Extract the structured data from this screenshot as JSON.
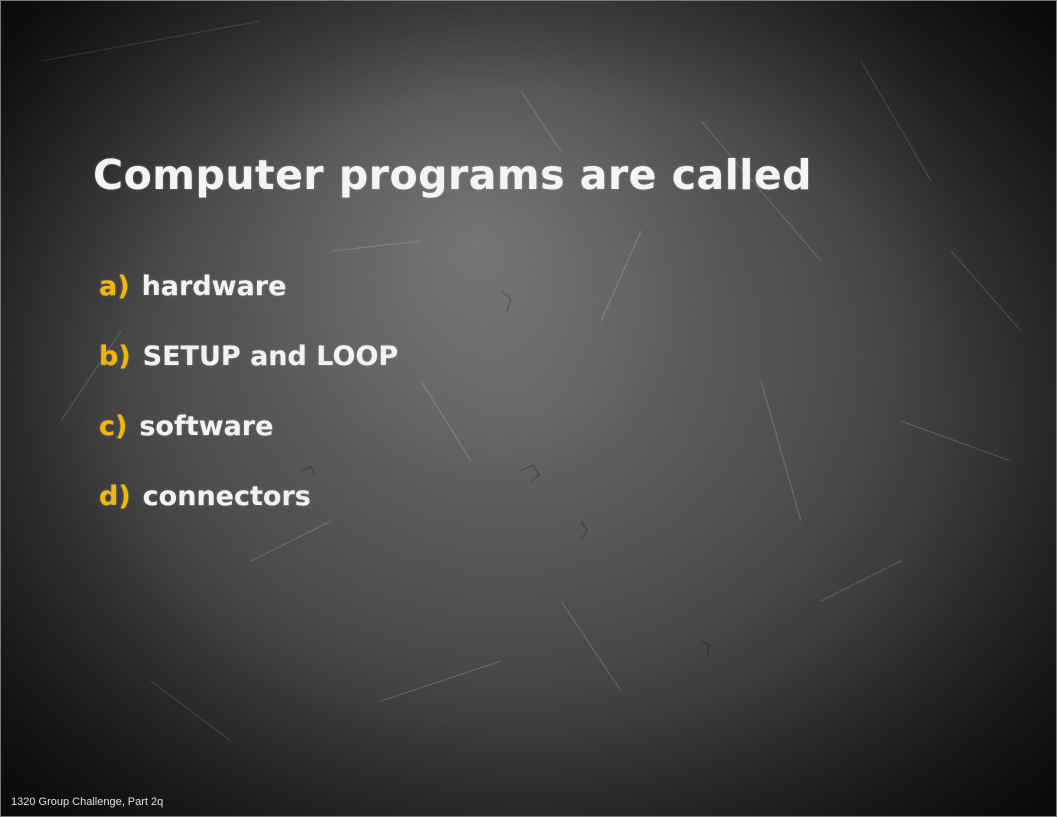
{
  "slide": {
    "title": "Computer programs are called",
    "options": [
      {
        "letter": "a)",
        "text": "hardware"
      },
      {
        "letter": "b)",
        "text": "SETUP and LOOP"
      },
      {
        "letter": "c)",
        "text": "software"
      },
      {
        "letter": "d)",
        "text": "connectors"
      }
    ],
    "footer": "1320 Group Challenge, Part 2q"
  },
  "colors": {
    "title_text": "#f4f4f4",
    "option_text": "#f2f2f2",
    "option_letter": "#f2b705",
    "background": "#464646"
  }
}
